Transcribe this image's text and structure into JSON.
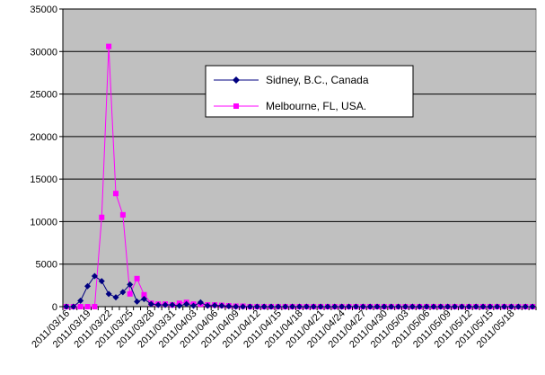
{
  "chart_data": {
    "type": "line",
    "title": "",
    "xlabel": "",
    "ylabel": "",
    "ylim": [
      0,
      35000
    ],
    "y_ticks": [
      0,
      5000,
      10000,
      15000,
      20000,
      25000,
      30000,
      35000
    ],
    "plot_background": "#c0c0c0",
    "grid": "horizontal",
    "legend_position": "inside-upper-center",
    "x_tick_labels": [
      "2011/03/16",
      "2011/03/19",
      "2011/03/22",
      "2011/03/25",
      "2011/03/28",
      "2011/03/31",
      "2011/04/03",
      "2011/04/06",
      "2011/04/09",
      "2011/04/12",
      "2011/04/15",
      "2011/04/18",
      "2011/04/21",
      "2011/04/24",
      "2011/04/27",
      "2011/04/30",
      "2011/05/03",
      "2011/05/06",
      "2011/05/09",
      "2011/05/12",
      "2011/05/15",
      "2011/05/18"
    ],
    "tick_every": 3,
    "series": [
      {
        "name": "Sidney, B.C., Canada",
        "color": "#000080",
        "marker": "diamond",
        "values": [
          0,
          0,
          700,
          2400,
          3600,
          3000,
          1500,
          1100,
          1700,
          2600,
          600,
          900,
          300,
          200,
          200,
          200,
          100,
          300,
          100,
          500,
          100,
          150,
          100,
          50,
          0,
          0,
          0,
          0,
          0,
          0,
          0,
          0,
          0,
          0,
          0,
          0,
          0,
          0,
          0,
          0,
          0,
          0,
          0,
          0,
          0,
          0,
          0,
          0,
          0,
          0,
          0,
          0,
          0,
          0,
          0,
          0,
          0,
          0,
          0,
          0,
          0,
          0,
          0,
          0,
          0,
          0,
          0
        ]
      },
      {
        "name": "Melbourne, FL, USA.",
        "color": "#ff00ff",
        "marker": "square",
        "values": [
          0,
          0,
          0,
          0,
          0,
          10500,
          30600,
          13300,
          10800,
          1500,
          3300,
          1400,
          400,
          300,
          300,
          200,
          400,
          500,
          300,
          300,
          200,
          200,
          150,
          100,
          50,
          50,
          0,
          0,
          0,
          0,
          0,
          0,
          0,
          0,
          0,
          0,
          0,
          0,
          0,
          0,
          0,
          0,
          0,
          0,
          0,
          0,
          0,
          0,
          0,
          0,
          0,
          0,
          0,
          0,
          0,
          0,
          0,
          0,
          0,
          0,
          0,
          0,
          0,
          0,
          0,
          0,
          0
        ]
      }
    ]
  }
}
